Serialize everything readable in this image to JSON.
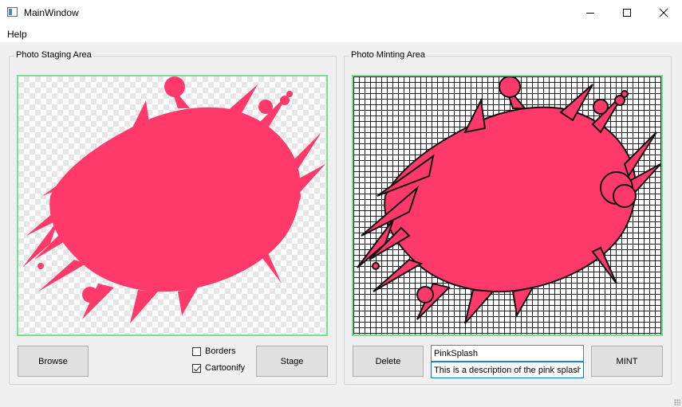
{
  "window": {
    "title": "MainWindow"
  },
  "menu": {
    "help": "Help"
  },
  "staging": {
    "group_title": "Photo Staging Area",
    "browse_label": "Browse",
    "borders_label": "Borders",
    "borders_checked": false,
    "cartoonify_label": "Cartoonify",
    "cartoonify_checked": true,
    "stage_label": "Stage"
  },
  "minting": {
    "group_title": "Photo Minting Area",
    "delete_label": "Delete",
    "name_value": "PinkSplash",
    "description_value": "This is a description of the pink splash",
    "mint_label": "MINT"
  },
  "colors": {
    "splash": "#ff3a6b",
    "image_border": "#77e18f",
    "outline": "#111111"
  }
}
